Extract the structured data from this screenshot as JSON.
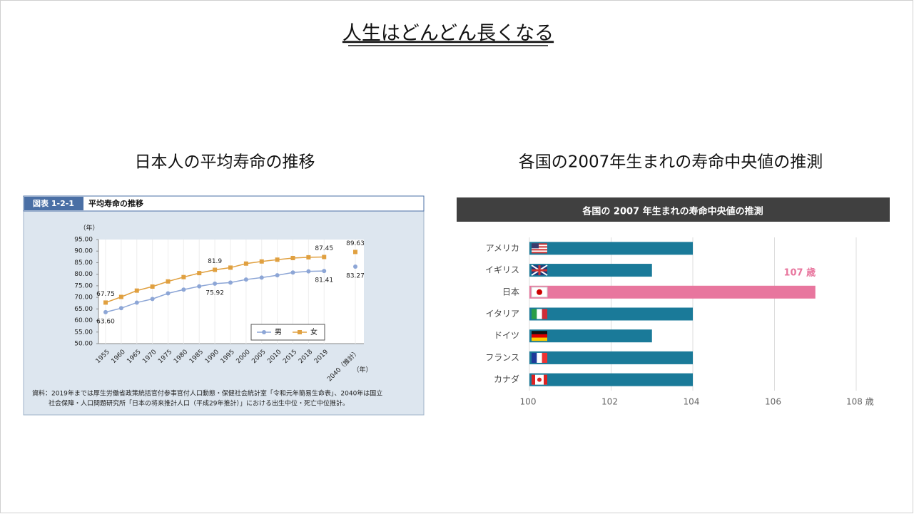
{
  "slide_title": "人生はどんどん長くなる",
  "left_heading": "日本人の平均寿命の推移",
  "right_heading": "各国の2007年生まれの寿命中央値の推測",
  "chart_data": [
    {
      "type": "line",
      "header_label": "図表 1-2-1",
      "title": "平均寿命の推移",
      "y_label": "（年）",
      "x_label": "（年）",
      "categories": [
        "1955",
        "1960",
        "1965",
        "1970",
        "1975",
        "1980",
        "1985",
        "1990",
        "1995",
        "2000",
        "2005",
        "2010",
        "2015",
        "2018",
        "2019",
        null,
        "2040（推計）"
      ],
      "series": [
        {
          "name": "男",
          "color": "#8da6d6",
          "marker": "circle",
          "values": [
            63.6,
            65.32,
            67.74,
            69.31,
            71.73,
            73.35,
            74.78,
            75.92,
            76.38,
            77.72,
            78.56,
            79.55,
            80.75,
            81.25,
            81.41,
            null,
            83.27
          ],
          "value_labels": [
            "63.60",
            null,
            null,
            null,
            null,
            null,
            null,
            "75.92",
            null,
            null,
            null,
            null,
            null,
            null,
            "81.41",
            null,
            "83.27"
          ]
        },
        {
          "name": "女",
          "color": "#e0a040",
          "marker": "square",
          "values": [
            67.75,
            70.19,
            72.92,
            74.66,
            76.89,
            78.76,
            80.48,
            81.9,
            82.85,
            84.6,
            85.52,
            86.3,
            86.99,
            87.32,
            87.45,
            null,
            89.63
          ],
          "value_labels": [
            "67.75",
            null,
            null,
            null,
            null,
            null,
            null,
            "81.9",
            null,
            null,
            null,
            null,
            null,
            null,
            "87.45",
            null,
            "89.63"
          ]
        }
      ],
      "ylim": [
        50,
        95
      ],
      "yticks": [
        {
          "value": 50,
          "label": "50.00"
        },
        {
          "value": 55,
          "label": "55.00"
        },
        {
          "value": 60,
          "label": "60.00"
        },
        {
          "value": 65,
          "label": "65.00"
        },
        {
          "value": 70,
          "label": "70.00"
        },
        {
          "value": 75,
          "label": "75.00"
        },
        {
          "value": 80,
          "label": "80.00"
        },
        {
          "value": 85,
          "label": "85.00"
        },
        {
          "value": 90,
          "label": "90.00"
        },
        {
          "value": 95,
          "label": "95.00"
        }
      ],
      "legend": "lower right",
      "note": [
        "資料：2019年までは厚生労働省政策統括官付参事官付人口動態・保健社会統計室「令和元年簡易生命表」、2040年は国立",
        "社会保障・人口問題研究所「日本の将来推計人口（平成29年推計）」における出生中位・死亡中位推計。"
      ]
    },
    {
      "type": "bar",
      "orientation": "horizontal",
      "title": "各国の 2007 年生まれの寿命中央値の推測",
      "categories": [
        "アメリカ",
        "イギリス",
        "日本",
        "イタリア",
        "ドイツ",
        "フランス",
        "カナダ"
      ],
      "values": [
        104,
        103,
        107,
        104,
        103,
        104,
        104
      ],
      "value_labels": [
        null,
        null,
        "107 歳",
        null,
        null,
        null,
        null
      ],
      "colors": [
        "#1a7a99",
        "#1a7a99",
        "#e8769e",
        "#1a7a99",
        "#1a7a99",
        "#1a7a99",
        "#1a7a99"
      ],
      "xlim": [
        100,
        108
      ],
      "xticks": [
        100,
        102,
        104,
        106,
        {
          "value": 108,
          "label": "108 歳"
        }
      ],
      "grid": true
    }
  ]
}
